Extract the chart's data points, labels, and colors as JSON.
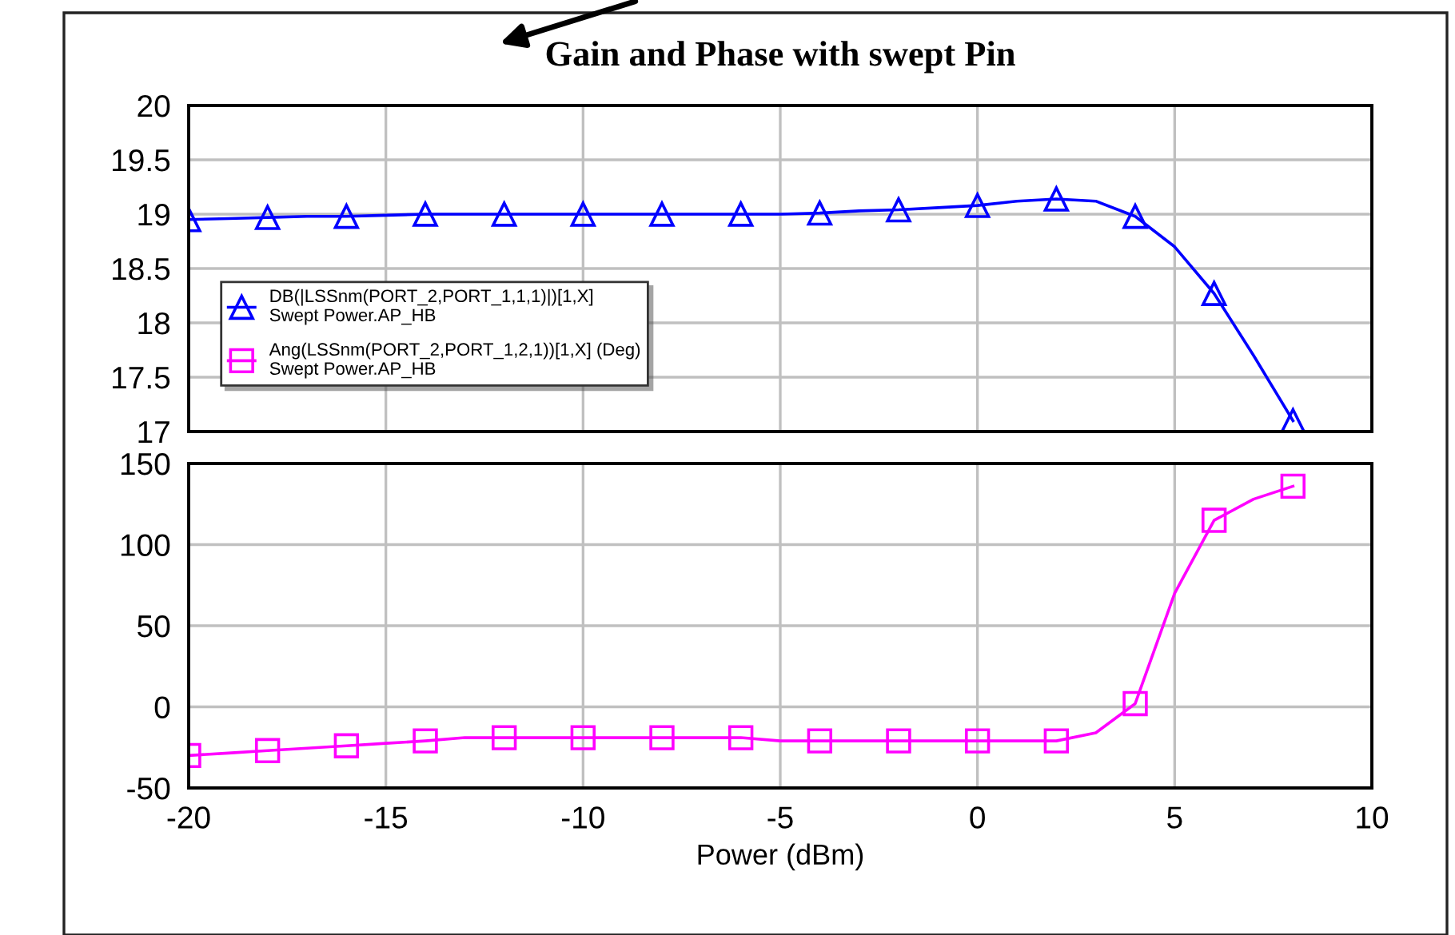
{
  "chart_data": [
    {
      "type": "line",
      "title": "Gain and Phase with swept Pin",
      "x": [
        -20,
        -19,
        -18,
        -17,
        -16,
        -15,
        -14,
        -13,
        -12,
        -11,
        -10,
        -9,
        -8,
        -7,
        -6,
        -5,
        -4,
        -3,
        -2,
        -1,
        0,
        1,
        2,
        3,
        4,
        5,
        6,
        7,
        8
      ],
      "series": [
        {
          "name": "DB(|LSSnm(PORT_2,PORT_1,1,1)|)[1,X]\nSwept Power.AP_HB",
          "color": "#0000ff",
          "marker": "triangle",
          "values": [
            18.95,
            18.96,
            18.97,
            18.98,
            18.98,
            18.99,
            19.0,
            19.0,
            19.0,
            19.0,
            19.0,
            19.0,
            19.0,
            19.0,
            19.0,
            19.0,
            19.01,
            19.03,
            19.04,
            19.06,
            19.08,
            19.12,
            19.14,
            19.12,
            18.98,
            18.7,
            18.27,
            17.7,
            17.1
          ]
        }
      ],
      "xlim": [
        -20,
        10
      ],
      "xticks": [
        -20,
        -15,
        -10,
        -5,
        0,
        5,
        10
      ],
      "ylim": [
        17,
        20
      ],
      "yticks": [
        17,
        17.5,
        18,
        18.5,
        19,
        19.5,
        20
      ],
      "tick_labels": "y",
      "grid": true,
      "legend": "left",
      "line_style": "solid"
    },
    {
      "type": "line",
      "xlabel": "Power (dBm)",
      "x": [
        -20,
        -19,
        -18,
        -17,
        -16,
        -15,
        -14,
        -13,
        -12,
        -11,
        -10,
        -9,
        -8,
        -7,
        -6,
        -5,
        -4,
        -3,
        -2,
        -1,
        0,
        1,
        2,
        3,
        4,
        5,
        6,
        7,
        8
      ],
      "series": [
        {
          "name": "Ang(LSSnm(PORT_2,PORT_1,2,1))[1,X] (Deg)\nSwept Power.AP_HB",
          "color": "#ff00ff",
          "marker": "square",
          "values": [
            -30,
            -28.5,
            -27,
            -25.5,
            -24,
            -22.5,
            -21,
            -19,
            -19,
            -19,
            -19,
            -19,
            -19,
            -19,
            -19,
            -21,
            -21,
            -21,
            -21,
            -21,
            -21,
            -21,
            -21,
            -16,
            2,
            70,
            115,
            128,
            136
          ]
        }
      ],
      "xlim": [
        -20,
        10
      ],
      "xticks": [
        -20,
        -15,
        -10,
        -5,
        0,
        5,
        10
      ],
      "ylim": [
        -50,
        150
      ],
      "yticks": [
        -50,
        0,
        50,
        100,
        150
      ],
      "grid": true,
      "legend": "left",
      "line_style": "solid"
    }
  ]
}
